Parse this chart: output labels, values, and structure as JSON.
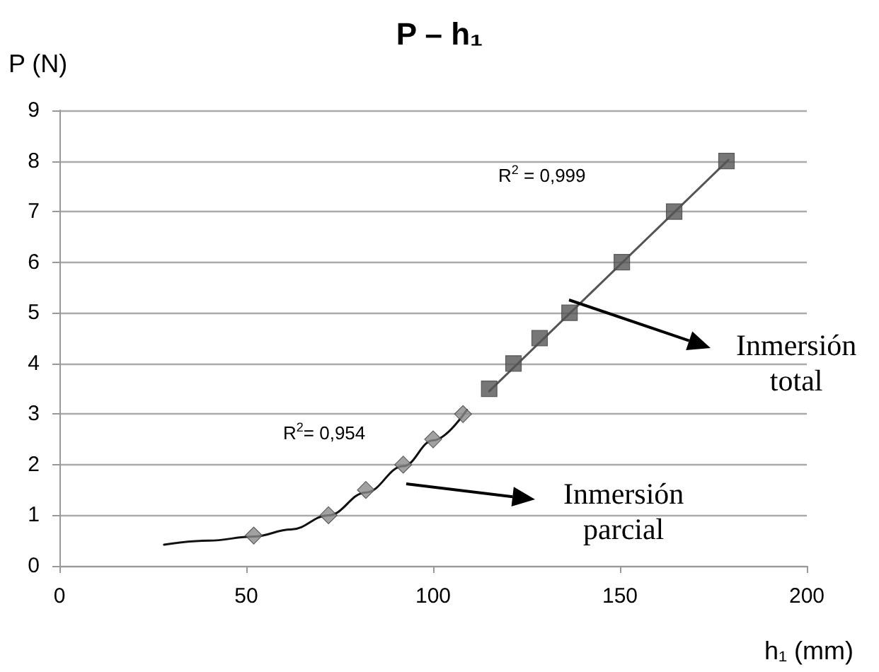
{
  "chart_data": {
    "type": "scatter",
    "title": "P – h₁",
    "xlabel": "h₁ (mm)",
    "ylabel": "P (N)",
    "xlim": [
      0,
      200
    ],
    "xticks": [
      0,
      50,
      100,
      150,
      200
    ],
    "ylim": [
      0,
      9
    ],
    "yticks": [
      0,
      1,
      2,
      3,
      4,
      5,
      6,
      7,
      8,
      9
    ],
    "grid": "y",
    "series": [
      {
        "type": "line",
        "marker": "none",
        "color": "#111111",
        "x": [
          28,
          40,
          52,
          62,
          72,
          82,
          92,
          100,
          109
        ],
        "values": [
          0.42,
          0.5,
          0.58,
          0.72,
          1.0,
          1.45,
          1.97,
          2.48,
          3.08
        ]
      },
      {
        "type": "line",
        "marker": "none",
        "color": "#555555",
        "x": [
          115,
          179
        ],
        "values": [
          3.45,
          8.02
        ]
      },
      {
        "marker": "diamond",
        "color": "#8a8a8a",
        "x": [
          52,
          72,
          82,
          92,
          100,
          108
        ],
        "values": [
          0.6,
          1.0,
          1.5,
          2,
          2.5,
          3
        ]
      },
      {
        "marker": "square",
        "color": "#555555",
        "x": [
          115,
          121.5,
          128.5,
          136.5,
          150.5,
          164.5,
          178.5
        ],
        "values": [
          3.5,
          4,
          4.5,
          5,
          6,
          7,
          8
        ]
      }
    ],
    "annotations": [
      "R$^{2}$ = 0,999",
      "R$^{2}$= 0,954",
      "Inmersión\ntotal",
      "Inmersión\nparcial"
    ]
  }
}
